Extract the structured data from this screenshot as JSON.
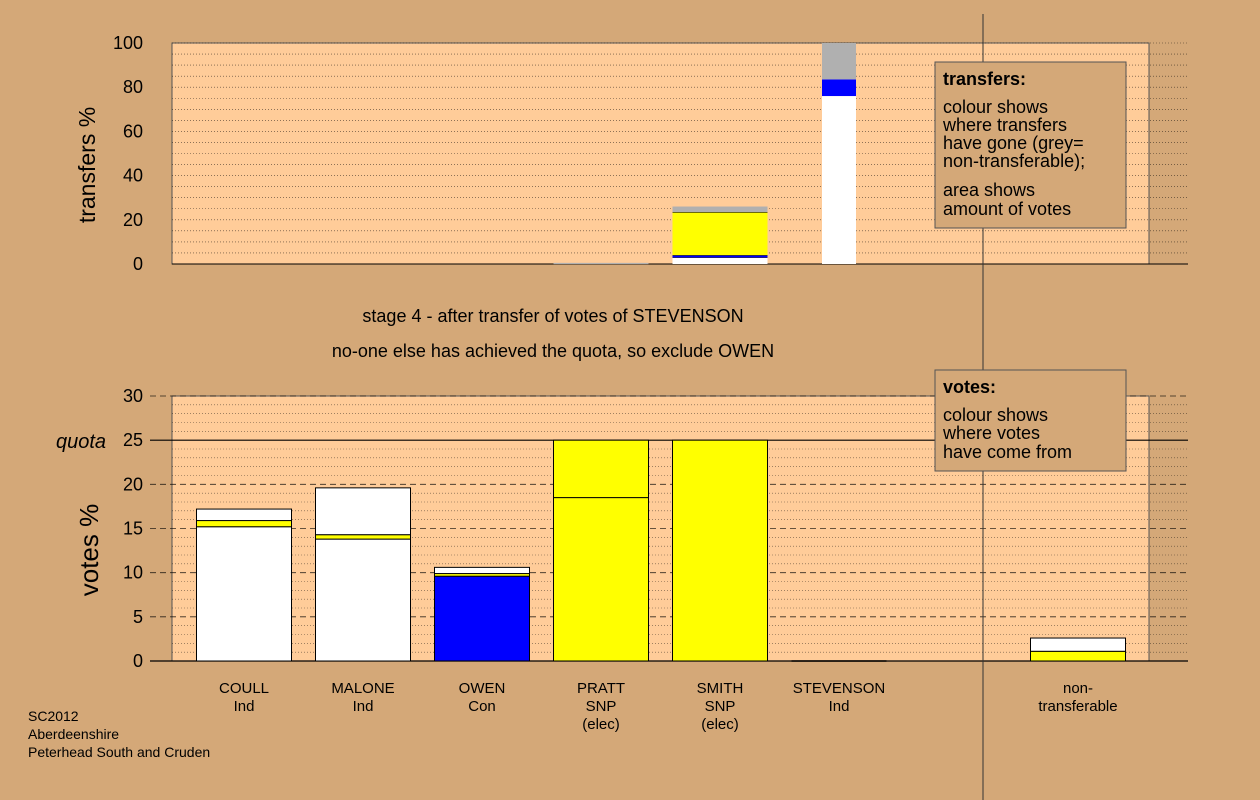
{
  "colors": {
    "background": "#d4a878",
    "plot_bg": "#ffcc99",
    "legend_bg": "#d4a878",
    "Ind": "#ffffff",
    "SNP": "#ffff00",
    "Con": "#0000ff",
    "non_transferable": "#b0b0b0"
  },
  "chart_data": [
    {
      "type": "bar",
      "stacked": true,
      "title": "",
      "ylabel": "transfers %",
      "ylim": [
        0,
        100
      ],
      "y_ticks": [
        0,
        20,
        40,
        60,
        80,
        100
      ],
      "grid": true,
      "categories": [
        "COULL",
        "MALONE",
        "OWEN",
        "PRATT",
        "SMITH",
        "STEVENSON"
      ],
      "stacks": [
        [],
        [],
        [],
        [
          {
            "party": "non_transferable",
            "value": 0.5
          }
        ],
        [
          {
            "party": "Ind",
            "value": 3.0
          },
          {
            "party": "Con",
            "value": 1.0
          },
          {
            "party": "SNP",
            "value": 19.5
          },
          {
            "party": "non_transferable",
            "value": 2.5
          }
        ],
        [
          {
            "party": "Ind",
            "value": 76.0
          },
          {
            "party": "Con",
            "value": 7.5
          },
          {
            "party": "non_transferable",
            "value": 16.5
          }
        ]
      ],
      "legend": {
        "title": "transfers:",
        "lines_1": [
          "colour shows",
          "where transfers",
          "have gone (grey=",
          "non-transferable);"
        ],
        "lines_2": [
          "area shows",
          "amount of votes"
        ],
        "placement": "top-right"
      }
    },
    {
      "type": "bar",
      "stacked": true,
      "title": "",
      "ylabel": "votes %",
      "ylim": [
        0,
        30
      ],
      "y_ticks": [
        0,
        5,
        10,
        15,
        20,
        25,
        30
      ],
      "quota": 25,
      "quota_label": "quota",
      "grid": true,
      "categories": [
        "COULL",
        "MALONE",
        "OWEN",
        "PRATT",
        "SMITH",
        "STEVENSON",
        "non-transferable"
      ],
      "category_labels": [
        [
          "COULL",
          "Ind"
        ],
        [
          "MALONE",
          "Ind"
        ],
        [
          "OWEN",
          "Con"
        ],
        [
          "PRATT",
          "SNP",
          "(elec)"
        ],
        [
          "SMITH",
          "SNP",
          "(elec)"
        ],
        [
          "STEVENSON",
          "Ind"
        ],
        [
          "non-",
          "transferable"
        ]
      ],
      "stacks": [
        [
          {
            "party": "Ind",
            "value": 15.2
          },
          {
            "party": "SNP",
            "value": 0.7
          },
          {
            "party": "Ind",
            "value": 1.3
          }
        ],
        [
          {
            "party": "Ind",
            "value": 13.8
          },
          {
            "party": "SNP",
            "value": 0.5
          },
          {
            "party": "Ind",
            "value": 5.3
          }
        ],
        [
          {
            "party": "Con",
            "value": 9.6
          },
          {
            "party": "SNP",
            "value": 0.3
          },
          {
            "party": "Ind",
            "value": 0.7
          }
        ],
        [
          {
            "party": "SNP",
            "value": 18.5
          },
          {
            "party": "SNP",
            "value": 6.5
          }
        ],
        [
          {
            "party": "SNP",
            "value": 25.0
          }
        ],
        [],
        [
          {
            "party": "SNP",
            "value": 1.1
          },
          {
            "party": "Ind",
            "value": 1.5
          }
        ]
      ],
      "legend": {
        "title": "votes:",
        "lines_1": [
          "colour shows",
          "where votes",
          "have come from"
        ],
        "lines_2": [],
        "placement": "top-right"
      }
    }
  ],
  "stage": {
    "line1": "stage 4 - after transfer of votes of STEVENSON",
    "line2": "no-one else has achieved the quota, so exclude OWEN"
  },
  "footer": {
    "line1": "SC2012",
    "line2": "Aberdeenshire",
    "line3": "Peterhead South and Cruden"
  }
}
